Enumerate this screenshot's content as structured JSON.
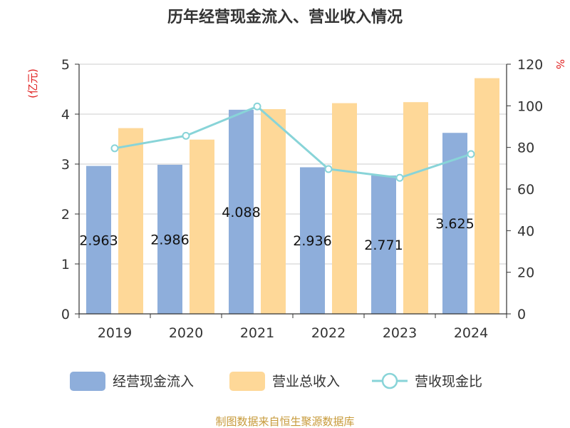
{
  "chart_data": {
    "type": "bar",
    "title": "历年经营现金流入、营业收入情况",
    "categories": [
      "2019",
      "2020",
      "2021",
      "2022",
      "2023",
      "2024"
    ],
    "series": [
      {
        "name": "经营现金流入",
        "type": "bar",
        "axis": "left",
        "color": "#8eaedb",
        "values": [
          2.963,
          2.986,
          4.088,
          2.936,
          2.771,
          3.625
        ],
        "labels": [
          "2.963",
          "2.986",
          "4.088",
          "2.936",
          "2.771",
          "3.625"
        ]
      },
      {
        "name": "营业总收入",
        "type": "bar",
        "axis": "left",
        "color": "#fed898",
        "values": [
          3.72,
          3.49,
          4.1,
          4.22,
          4.24,
          4.72
        ]
      },
      {
        "name": "营收现金比",
        "type": "line",
        "axis": "right",
        "color": "#88d4d8",
        "values": [
          79.6,
          85.6,
          99.7,
          69.6,
          65.4,
          76.8
        ]
      }
    ],
    "y_left": {
      "label": "(亿元)",
      "min": 0,
      "max": 5,
      "ticks": [
        0,
        1,
        2,
        3,
        4,
        5
      ]
    },
    "y_right": {
      "label": "%",
      "min": 0,
      "max": 120,
      "ticks": [
        0,
        20,
        40,
        60,
        80,
        100,
        120
      ]
    },
    "grid": true,
    "legend_position": "bottom"
  },
  "source": "制图数据来自恒生聚源数据库"
}
